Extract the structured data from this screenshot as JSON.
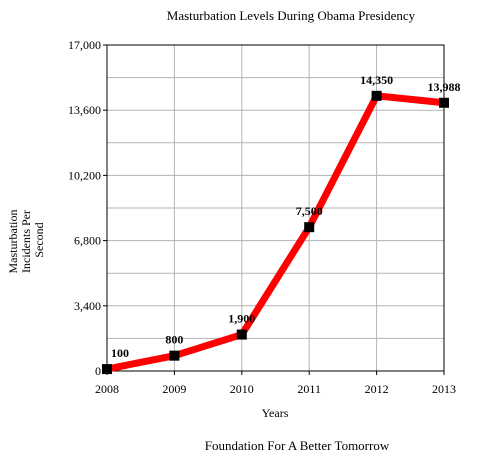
{
  "chart_data": {
    "type": "line",
    "title": "Masturbation Levels During Obama Presidency",
    "xlabel": "Years",
    "ylabel_lines": [
      "Masturbation",
      "Incidents Per",
      "Second"
    ],
    "footer": "Foundation For A Better Tomorrow",
    "x": [
      "2008",
      "2009",
      "2010",
      "2011",
      "2012",
      "2013"
    ],
    "series": [
      {
        "values": [
          100,
          800,
          1900,
          7500,
          14350,
          13988
        ],
        "data_labels": [
          "100",
          "800",
          "1,900",
          "7,500",
          "14,350",
          "13,988"
        ],
        "color": "#ff0000",
        "marker_color": "#000000"
      }
    ],
    "ylim": [
      0,
      17000
    ],
    "y_ticks": [
      0,
      3400,
      6800,
      10200,
      13600,
      17000
    ],
    "y_tick_labels": [
      "0",
      "3,400",
      "6,800",
      "10,200",
      "13,600",
      "17,000"
    ],
    "grid": true,
    "grid_color": "#b3b3b3"
  }
}
